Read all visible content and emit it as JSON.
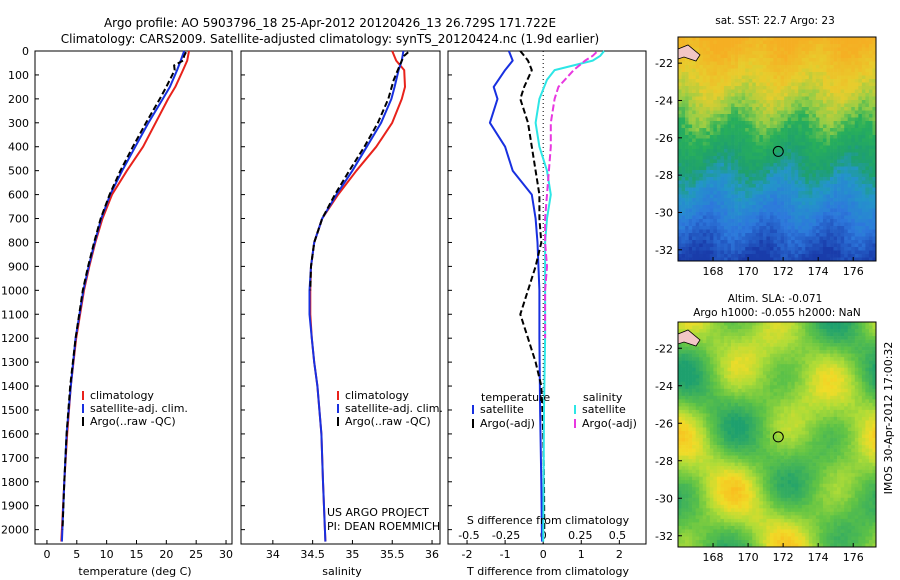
{
  "header": {
    "line1": "Argo profile: AO 5903796_18 25-Apr-2012 20120426_13 26.729S 171.722E",
    "line2": "Climatology: CARS2009. Satellite-adjusted climatology: synTS_20120424.nc (1.9d earlier)"
  },
  "colors": {
    "climatology": "#e8221b",
    "satellite": "#1830e0",
    "argo": "#000000",
    "sal_satellite": "#2de6e6",
    "sal_argo": "#e838e0"
  },
  "chart_data": [
    {
      "type": "line",
      "title": "",
      "xlabel": "temperature (deg C)",
      "ylabel": "",
      "xlim": [
        -2,
        31
      ],
      "ylim": [
        2060,
        0
      ],
      "xticks": [
        "0",
        "5",
        "10",
        "15",
        "20",
        "25",
        "30"
      ],
      "yticks": [
        "0",
        "100",
        "200",
        "300",
        "400",
        "500",
        "600",
        "700",
        "800",
        "900",
        "1000",
        "1100",
        "1200",
        "1300",
        "1400",
        "1500",
        "1600",
        "1700",
        "1800",
        "1900",
        "2000"
      ],
      "legend": [
        "climatology",
        "satellite-adj. clim.",
        "Argo(..raw -QC)"
      ],
      "series": [
        {
          "name": "climatology",
          "depth": [
            0,
            40,
            80,
            150,
            200,
            300,
            400,
            500,
            600,
            700,
            800,
            900,
            1000,
            1200,
            1400,
            1600,
            1800,
            2050
          ],
          "values": [
            23.8,
            23.5,
            22.8,
            21.5,
            20.3,
            18.2,
            16.1,
            13.4,
            10.9,
            9.3,
            8.1,
            7.1,
            6.2,
            4.9,
            4.0,
            3.4,
            2.9,
            2.4
          ]
        },
        {
          "name": "satellite-adj. clim.",
          "depth": [
            0,
            40,
            80,
            150,
            200,
            300,
            400,
            500,
            600,
            700,
            800,
            900,
            1000,
            1200,
            1400,
            1600,
            1800,
            2050
          ],
          "values": [
            23.0,
            22.4,
            21.8,
            20.6,
            19.4,
            17.0,
            14.8,
            12.6,
            10.6,
            9.1,
            8.0,
            7.0,
            6.1,
            4.8,
            4.0,
            3.3,
            2.9,
            2.5
          ]
        },
        {
          "name": "Argo(..raw -QC)",
          "depth": [
            5,
            20,
            40,
            60,
            80,
            100,
            150,
            200,
            300,
            400,
            500,
            600,
            700,
            800,
            900,
            1000,
            1200,
            1400,
            1600,
            1800,
            2000
          ],
          "values": [
            23.3,
            23.0,
            22.8,
            21.3,
            21.4,
            21.0,
            20.0,
            18.9,
            16.6,
            14.4,
            12.3,
            10.5,
            9.0,
            7.9,
            6.9,
            6.0,
            4.8,
            3.9,
            3.3,
            2.9,
            2.6
          ]
        }
      ]
    },
    {
      "type": "line",
      "title": "",
      "xlabel": "salinity",
      "ylabel": "",
      "xlim": [
        33.6,
        36.1
      ],
      "ylim": [
        2060,
        0
      ],
      "xticks": [
        "34",
        "34.5",
        "35",
        "35.5",
        "36"
      ],
      "legend": [
        "climatology",
        "satellite-adj. clim.",
        "Argo(..raw -QC)"
      ],
      "annotations": [
        "US ARGO PROJECT",
        "PI: DEAN ROEMMICH"
      ],
      "series": [
        {
          "name": "climatology",
          "depth": [
            0,
            40,
            80,
            150,
            200,
            300,
            400,
            500,
            600,
            700,
            800,
            900,
            1000,
            1100,
            1200,
            1300,
            1400,
            1600,
            1800,
            2050
          ],
          "values": [
            35.5,
            35.55,
            35.65,
            35.66,
            35.62,
            35.5,
            35.3,
            35.05,
            34.82,
            34.62,
            34.52,
            34.48,
            34.47,
            34.47,
            34.49,
            34.52,
            34.56,
            34.61,
            34.63,
            34.66
          ]
        },
        {
          "name": "satellite-adj. clim.",
          "depth": [
            0,
            40,
            80,
            150,
            200,
            300,
            400,
            500,
            600,
            700,
            800,
            900,
            1000,
            1100,
            1200,
            1300,
            1400,
            1600,
            1800,
            2050
          ],
          "values": [
            35.64,
            35.62,
            35.58,
            35.53,
            35.49,
            35.36,
            35.18,
            35.0,
            34.8,
            34.62,
            34.52,
            34.48,
            34.46,
            34.46,
            34.49,
            34.52,
            34.56,
            34.61,
            34.63,
            34.66
          ]
        },
        {
          "name": "Argo(..raw -QC)",
          "depth": [
            5,
            20,
            40,
            80,
            120,
            200,
            300,
            400,
            500,
            600,
            700,
            800,
            900,
            1000
          ],
          "values": [
            35.7,
            35.65,
            35.62,
            35.57,
            35.52,
            35.45,
            35.32,
            35.15,
            34.96,
            34.78,
            34.62,
            34.52,
            34.48,
            34.47
          ]
        }
      ]
    },
    {
      "type": "line",
      "title": "",
      "xlabel": "T difference from climatology",
      "xlabel2": "S difference from climatology",
      "ylabel": "",
      "xlim": [
        -2.5,
        2.7
      ],
      "ylim": [
        2060,
        0
      ],
      "xticks": [
        "-2",
        "-1",
        "0",
        "1",
        "2"
      ],
      "xticks2": [
        "-0.5",
        "-0.25",
        "0",
        "0.25",
        "0.5"
      ],
      "legend_headers": [
        "temperature",
        "salinity"
      ],
      "legend": [
        "satellite",
        "Argo(-adj)",
        "satellite",
        "Argo(-adj)"
      ],
      "series": [
        {
          "name": "temperature satellite",
          "depth": [
            0,
            40,
            80,
            150,
            200,
            300,
            400,
            500,
            600,
            700,
            800,
            1000,
            1200,
            1500,
            1800,
            2050
          ],
          "values": [
            -0.9,
            -0.8,
            -1.0,
            -1.3,
            -1.2,
            -1.4,
            -1.0,
            -0.8,
            -0.3,
            -0.2,
            -0.15,
            -0.1,
            -0.1,
            -0.08,
            -0.05,
            -0.03
          ]
        },
        {
          "name": "temperature Argo(-adj)",
          "depth": [
            0,
            40,
            80,
            150,
            200,
            300,
            400,
            500,
            600,
            700,
            800,
            900,
            1000,
            1100,
            1200,
            1300,
            1400,
            1500,
            1600,
            1800,
            2000
          ],
          "values": [
            -0.6,
            -0.4,
            -0.3,
            -0.5,
            -0.6,
            -0.4,
            -0.3,
            -0.2,
            -0.1,
            -0.1,
            -0.05,
            -0.2,
            -0.4,
            -0.6,
            -0.4,
            -0.2,
            -0.05,
            -0.02,
            0,
            0.02,
            0.03
          ]
        },
        {
          "name": "salinity satellite",
          "depth": [
            0,
            20,
            40,
            80,
            120,
            200,
            300,
            400,
            500,
            600,
            700,
            800,
            1000,
            1200,
            1500,
            2050
          ],
          "values": [
            1.6,
            1.5,
            1.3,
            0.3,
            0.1,
            -0.1,
            -0.2,
            -0.1,
            0.1,
            0.2,
            0.1,
            0.05,
            0.05,
            0.05,
            0.02,
            0.0
          ]
        },
        {
          "name": "salinity Argo(-adj)",
          "depth": [
            5,
            20,
            40,
            80,
            150,
            200,
            300,
            400,
            500,
            600,
            700,
            800,
            900,
            1000,
            1100,
            1200
          ],
          "values": [
            1.4,
            1.3,
            1.1,
            0.8,
            0.4,
            0.3,
            0.2,
            0.2,
            0.15,
            0.1,
            0.05,
            0.05,
            0.1,
            0.05,
            0.05,
            0.05
          ]
        }
      ]
    },
    {
      "type": "heatmap",
      "title": "sat. SST: 22.7  Argo: 23",
      "xticks": [
        "168",
        "170",
        "172",
        "174",
        "176"
      ],
      "yticks": [
        "-22",
        "-24",
        "-26",
        "-28",
        "-30",
        "-32"
      ],
      "xlim": [
        166,
        177.3
      ],
      "ylim": [
        -32.6,
        -20.6
      ],
      "profile_marker": {
        "lon": 171.722,
        "lat": -26.729
      }
    },
    {
      "type": "heatmap",
      "title": "Altim. SLA: -0.071",
      "subtitle": "Argo h1000: -0.055 h2000: NaN",
      "xticks": [
        "168",
        "170",
        "172",
        "174",
        "176"
      ],
      "yticks": [
        "-22",
        "-24",
        "-26",
        "-28",
        "-30",
        "-32"
      ],
      "xlim": [
        166,
        177.3
      ],
      "ylim": [
        -32.6,
        -20.6
      ],
      "profile_marker": {
        "lon": 171.722,
        "lat": -26.729
      }
    }
  ],
  "side_label": "IMOS 30-Apr-2012 17:00:32"
}
